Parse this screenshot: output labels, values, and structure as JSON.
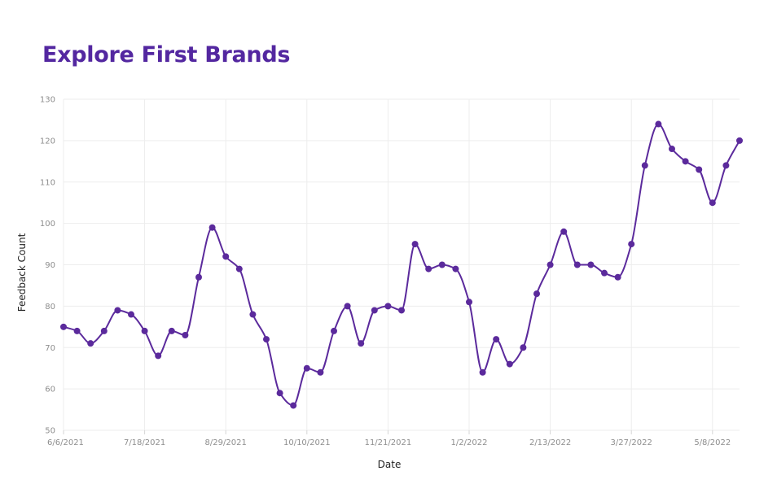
{
  "colors": {
    "series": "#5b2a9c",
    "title": "#5327a0",
    "grid": "#ededed",
    "tick_text": "#8d8d8d",
    "axis_title": "#222222"
  },
  "chart_data": {
    "type": "line",
    "title": "Explore First Brands",
    "xlabel": "Date",
    "ylabel": "Feedback Count",
    "ylim": [
      50,
      130
    ],
    "y_ticks": [
      50,
      60,
      70,
      80,
      90,
      100,
      110,
      120,
      130
    ],
    "x_tick_labels": [
      "6/6/2021",
      "7/18/2021",
      "8/29/2021",
      "10/10/2021",
      "11/21/2021",
      "1/2/2022",
      "2/13/2022",
      "3/27/2022",
      "5/8/2022"
    ],
    "grid": true,
    "curve": "smooth",
    "markers": true,
    "series": [
      {
        "x": [
          "6/6/2021",
          "6/13/2021",
          "6/20/2021",
          "6/27/2021",
          "7/4/2021",
          "7/11/2021",
          "7/18/2021",
          "7/25/2021",
          "8/1/2021",
          "8/8/2021",
          "8/15/2021",
          "8/22/2021",
          "8/29/2021",
          "9/5/2021",
          "9/12/2021",
          "9/19/2021",
          "9/26/2021",
          "10/3/2021",
          "10/10/2021",
          "10/17/2021",
          "10/24/2021",
          "10/31/2021",
          "11/7/2021",
          "11/14/2021",
          "11/21/2021",
          "11/28/2021",
          "12/5/2021",
          "12/12/2021",
          "12/19/2021",
          "12/26/2021",
          "1/2/2022",
          "1/9/2022",
          "1/16/2022",
          "1/23/2022",
          "1/30/2022",
          "2/6/2022",
          "2/13/2022",
          "2/20/2022",
          "2/27/2022",
          "3/6/2022",
          "3/13/2022",
          "3/20/2022",
          "3/27/2022",
          "4/3/2022",
          "4/10/2022",
          "4/17/2022",
          "4/24/2022",
          "5/1/2022",
          "5/8/2022",
          "5/15/2022",
          "5/22/2022"
        ],
        "values": [
          75,
          74,
          71,
          74,
          79,
          78,
          74,
          68,
          74,
          73,
          87,
          99,
          92,
          89,
          78,
          72,
          59,
          56,
          65,
          64,
          74,
          80,
          71,
          79,
          80,
          79,
          95,
          89,
          90,
          89,
          81,
          64,
          72,
          66,
          70,
          83,
          90,
          98,
          90,
          90,
          88,
          87,
          95,
          114,
          124,
          118,
          115,
          113,
          105,
          114,
          120
        ]
      }
    ]
  }
}
